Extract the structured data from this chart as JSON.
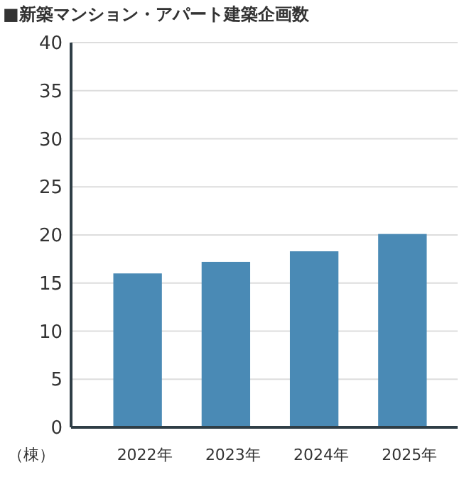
{
  "chart_data": {
    "type": "bar",
    "title": "■新築マンション・アパート建築企画数",
    "ylabel": "（棟）",
    "categories": [
      "2022年",
      "2023年",
      "2024年",
      "2025年"
    ],
    "values": [
      16.0,
      17.2,
      18.3,
      20.1
    ],
    "color": "#4a8ab5",
    "ylim": [
      0,
      40
    ],
    "yticks": [
      0,
      5,
      10,
      15,
      20,
      25,
      30,
      35,
      40
    ],
    "grid": "y"
  }
}
